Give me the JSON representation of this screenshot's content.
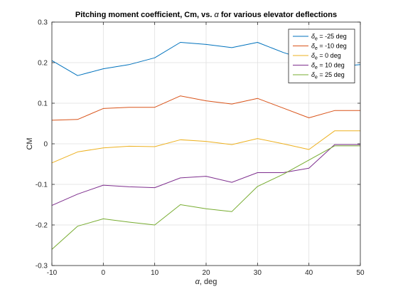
{
  "chart_data": {
    "type": "line",
    "title_prefix": "Pitching moment coefficient, Cm, vs.",
    "title_alpha": "α",
    "title_suffix": "for various elevator deflections",
    "xlabel_symbol": "α",
    "xlabel_rest": ", deg",
    "ylabel": "CM",
    "xlim": [
      -10,
      50
    ],
    "ylim": [
      -0.3,
      0.3
    ],
    "xticks": [
      -10,
      0,
      10,
      20,
      30,
      40,
      50
    ],
    "yticks": [
      -0.3,
      -0.2,
      -0.1,
      0,
      0.1,
      0.2,
      0.3
    ],
    "xtick_labels": [
      "-10",
      "0",
      "10",
      "20",
      "30",
      "40",
      "50"
    ],
    "ytick_labels": [
      "-0.3",
      "-0.2",
      "-0.1",
      "0",
      "0.1",
      "0.2",
      "0.3"
    ],
    "grid": true,
    "legend_position": "top-right",
    "x": [
      -10,
      -5,
      0,
      5,
      10,
      15,
      20,
      25,
      30,
      35,
      40,
      45,
      50
    ],
    "series": [
      {
        "name": "= -25 deg",
        "legend_symbol": "δ",
        "legend_sub": "e",
        "color": "#0072BD",
        "values": [
          0.205,
          0.168,
          0.185,
          0.195,
          0.212,
          0.25,
          0.245,
          0.237,
          0.25,
          0.225,
          0.205,
          0.19,
          0.195
        ]
      },
      {
        "name": "= -10 deg",
        "legend_symbol": "δ",
        "legend_sub": "e",
        "color": "#D95319",
        "values": [
          0.058,
          0.06,
          0.087,
          0.09,
          0.09,
          0.118,
          0.106,
          0.098,
          0.112,
          0.088,
          0.064,
          0.082,
          0.082
        ]
      },
      {
        "name": "= 0 deg",
        "legend_symbol": "δ",
        "legend_sub": "e",
        "color": "#EDB120",
        "values": [
          -0.047,
          -0.02,
          -0.01,
          -0.006,
          -0.007,
          0.01,
          0.006,
          -0.002,
          0.013,
          0.0,
          -0.014,
          0.032,
          0.032
        ]
      },
      {
        "name": "= 10 deg",
        "legend_symbol": "δ",
        "legend_sub": "e",
        "color": "#7E2F8E",
        "values": [
          -0.152,
          -0.124,
          -0.102,
          -0.106,
          -0.108,
          -0.084,
          -0.08,
          -0.095,
          -0.071,
          -0.071,
          -0.06,
          -0.002,
          -0.002
        ]
      },
      {
        "name": "= 25 deg",
        "legend_symbol": "δ",
        "legend_sub": "e",
        "color": "#77AC30",
        "values": [
          -0.26,
          -0.203,
          -0.185,
          -0.193,
          -0.2,
          -0.15,
          -0.16,
          -0.167,
          -0.105,
          -0.075,
          -0.04,
          -0.005,
          -0.005
        ]
      }
    ]
  }
}
